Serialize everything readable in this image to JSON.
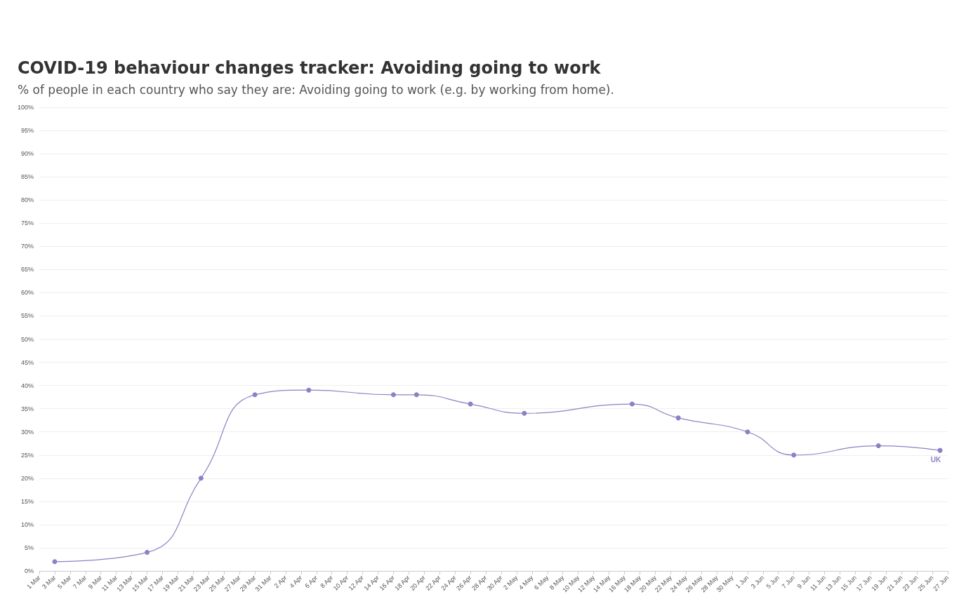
{
  "chart_data": {
    "type": "line",
    "title": "COVID-19 behaviour changes tracker: Avoiding going to work",
    "subtitle": "% of people in each country who say they are: Avoiding going to work (e.g. by working from home).",
    "series": [
      {
        "name": "UK",
        "color": "#8a82c4",
        "x": [
          "--03-03",
          "--03-15",
          "--03-22",
          "--03-29",
          "--04-05",
          "--04-16",
          "--04-19",
          "--04-26",
          "--05-03",
          "--05-17",
          "--05-23",
          "--06-01",
          "--06-07",
          "--06-18",
          "--06-26"
        ],
        "values": [
          2,
          4,
          20,
          38,
          39,
          38,
          38,
          36,
          34,
          36,
          33,
          30,
          25,
          27,
          26
        ]
      }
    ],
    "xlim": [
      "--03-01",
      "--06-27"
    ],
    "xticks": [
      {
        "value": "--03-01",
        "label": "1 Mar"
      },
      {
        "value": "--03-03",
        "label": "3 Mar"
      },
      {
        "value": "--03-05",
        "label": "5 Mar"
      },
      {
        "value": "--03-07",
        "label": "7 Mar"
      },
      {
        "value": "--03-09",
        "label": "9 Mar"
      },
      {
        "value": "--03-11",
        "label": "11 Mar"
      },
      {
        "value": "--03-13",
        "label": "13 Mar"
      },
      {
        "value": "--03-15",
        "label": "15 Mar"
      },
      {
        "value": "--03-17",
        "label": "17 Mar"
      },
      {
        "value": "--03-19",
        "label": "19 Mar"
      },
      {
        "value": "--03-21",
        "label": "21 Mar"
      },
      {
        "value": "--03-23",
        "label": "23 Mar"
      },
      {
        "value": "--03-25",
        "label": "25 Mar"
      },
      {
        "value": "--03-27",
        "label": "27 Mar"
      },
      {
        "value": "--03-29",
        "label": "29 Mar"
      },
      {
        "value": "--03-31",
        "label": "31 Mar"
      },
      {
        "value": "--04-02",
        "label": "2 Apr"
      },
      {
        "value": "--04-04",
        "label": "4 Apr"
      },
      {
        "value": "--04-06",
        "label": "6 Apr"
      },
      {
        "value": "--04-08",
        "label": "8 Apr"
      },
      {
        "value": "--04-10",
        "label": "10 Apr"
      },
      {
        "value": "--04-12",
        "label": "12 Apr"
      },
      {
        "value": "--04-14",
        "label": "14 Apr"
      },
      {
        "value": "--04-16",
        "label": "16 Apr"
      },
      {
        "value": "--04-18",
        "label": "18 Apr"
      },
      {
        "value": "--04-20",
        "label": "20 Apr"
      },
      {
        "value": "--04-22",
        "label": "22 Apr"
      },
      {
        "value": "--04-24",
        "label": "24 Apr"
      },
      {
        "value": "--04-26",
        "label": "26 Apr"
      },
      {
        "value": "--04-28",
        "label": "28 Apr"
      },
      {
        "value": "--04-30",
        "label": "30 Apr"
      },
      {
        "value": "--05-02",
        "label": "2 May"
      },
      {
        "value": "--05-04",
        "label": "4 May"
      },
      {
        "value": "--05-06",
        "label": "6 May"
      },
      {
        "value": "--05-08",
        "label": "8 May"
      },
      {
        "value": "--05-10",
        "label": "10 May"
      },
      {
        "value": "--05-12",
        "label": "12 May"
      },
      {
        "value": "--05-14",
        "label": "14 May"
      },
      {
        "value": "--05-16",
        "label": "16 May"
      },
      {
        "value": "--05-18",
        "label": "18 May"
      },
      {
        "value": "--05-20",
        "label": "20 May"
      },
      {
        "value": "--05-22",
        "label": "22 May"
      },
      {
        "value": "--05-24",
        "label": "24 May"
      },
      {
        "value": "--05-26",
        "label": "26 May"
      },
      {
        "value": "--05-28",
        "label": "28 May"
      },
      {
        "value": "--05-30",
        "label": "30 May"
      },
      {
        "value": "--06-01",
        "label": "1 Jun"
      },
      {
        "value": "--06-03",
        "label": "3 Jun"
      },
      {
        "value": "--06-05",
        "label": "5 Jun"
      },
      {
        "value": "--06-07",
        "label": "7 Jun"
      },
      {
        "value": "--06-09",
        "label": "9 Jun"
      },
      {
        "value": "--06-11",
        "label": "11 Jun"
      },
      {
        "value": "--06-13",
        "label": "13 Jun"
      },
      {
        "value": "--06-15",
        "label": "15 Jun"
      },
      {
        "value": "--06-17",
        "label": "17 Jun"
      },
      {
        "value": "--06-19",
        "label": "19 Jun"
      },
      {
        "value": "--06-21",
        "label": "21 Jun"
      },
      {
        "value": "--06-23",
        "label": "23 Jun"
      },
      {
        "value": "--06-25",
        "label": "25 Jun"
      },
      {
        "value": "--06-27",
        "label": "27 Jun"
      }
    ],
    "ylim": [
      0,
      100
    ],
    "yticks": [
      {
        "value": 0,
        "label": "0%"
      },
      {
        "value": 5,
        "label": "5%"
      },
      {
        "value": 10,
        "label": "10%"
      },
      {
        "value": 15,
        "label": "15%"
      },
      {
        "value": 20,
        "label": "20%"
      },
      {
        "value": 25,
        "label": "25%"
      },
      {
        "value": 30,
        "label": "30%"
      },
      {
        "value": 35,
        "label": "35%"
      },
      {
        "value": 40,
        "label": "40%"
      },
      {
        "value": 45,
        "label": "45%"
      },
      {
        "value": 50,
        "label": "50%"
      },
      {
        "value": 55,
        "label": "55%"
      },
      {
        "value": 60,
        "label": "60%"
      },
      {
        "value": 65,
        "label": "65%"
      },
      {
        "value": 70,
        "label": "70%"
      },
      {
        "value": 75,
        "label": "75%"
      },
      {
        "value": 80,
        "label": "80%"
      },
      {
        "value": 85,
        "label": "85%"
      },
      {
        "value": 90,
        "label": "90%"
      },
      {
        "value": 95,
        "label": "95%"
      },
      {
        "value": 100,
        "label": "100%"
      }
    ],
    "grid": "y",
    "legend": false,
    "marker": "circle",
    "line_style": "solid"
  }
}
